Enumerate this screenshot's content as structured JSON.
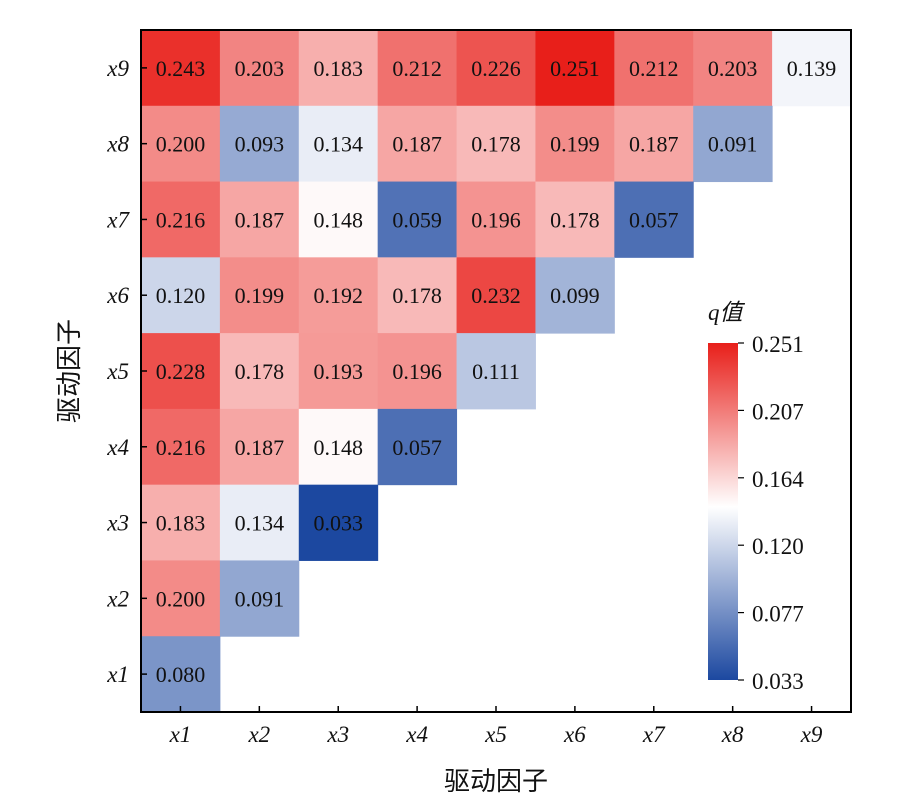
{
  "chart_data": {
    "type": "heatmap",
    "title": "",
    "xlabel": "驱动因子",
    "ylabel": "驱动因子",
    "x_categories": [
      "x1",
      "x2",
      "x3",
      "x4",
      "x5",
      "x6",
      "x7",
      "x8",
      "x9"
    ],
    "y_categories": [
      "x1",
      "x2",
      "x3",
      "x4",
      "x5",
      "x6",
      "x7",
      "x8",
      "x9"
    ],
    "rows": [
      {
        "y": "x9",
        "values": [
          0.243,
          0.203,
          0.183,
          0.212,
          0.226,
          0.251,
          0.212,
          0.203,
          0.139
        ]
      },
      {
        "y": "x8",
        "values": [
          0.2,
          0.093,
          0.134,
          0.187,
          0.178,
          0.199,
          0.187,
          0.091
        ]
      },
      {
        "y": "x7",
        "values": [
          0.216,
          0.187,
          0.148,
          0.059,
          0.196,
          0.178,
          0.057
        ]
      },
      {
        "y": "x6",
        "values": [
          0.12,
          0.199,
          0.192,
          0.178,
          0.232,
          0.099
        ]
      },
      {
        "y": "x5",
        "values": [
          0.228,
          0.178,
          0.193,
          0.196,
          0.111
        ]
      },
      {
        "y": "x4",
        "values": [
          0.216,
          0.187,
          0.148,
          0.057
        ]
      },
      {
        "y": "x3",
        "values": [
          0.183,
          0.134,
          0.033
        ]
      },
      {
        "y": "x2",
        "values": [
          0.2,
          0.091
        ]
      },
      {
        "y": "x1",
        "values": [
          0.08
        ]
      }
    ],
    "colorbar": {
      "title": "q值",
      "range": [
        0.033,
        0.251
      ],
      "ticks": [
        "0.251",
        "0.207",
        "0.164",
        "0.120",
        "0.077",
        "0.033"
      ],
      "colors": {
        "low": "#1c48a0",
        "mid": "#ffffff",
        "high": "#e81f1a"
      },
      "mid_value": 0.145
    },
    "legend_placement": "right-inside"
  }
}
